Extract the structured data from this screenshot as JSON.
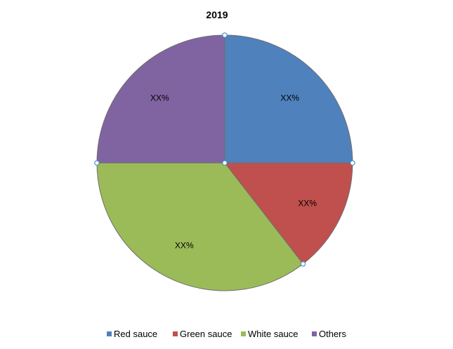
{
  "chart_data": {
    "type": "pie",
    "title": "2019",
    "categories": [
      "Red sauce",
      "Green sauce",
      "White sauce",
      "Others"
    ],
    "values": [
      25,
      14.5,
      35.5,
      25
    ],
    "labels": [
      "XX%",
      "XX%",
      "XX%",
      "XX%"
    ],
    "colors": [
      "#4F81BD",
      "#C0504D",
      "#9BBB59",
      "#8064A2"
    ],
    "start_angle_deg": 90,
    "direction": "clockwise",
    "legend_position": "bottom",
    "selection_handles": true
  }
}
